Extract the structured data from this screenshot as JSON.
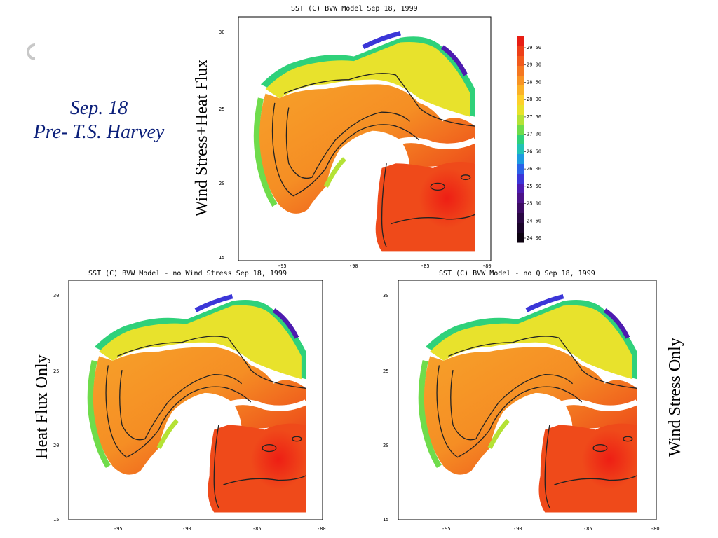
{
  "slide": {
    "title_line1": "Sep. 18",
    "title_line2": "Pre- T.S. Harvey"
  },
  "side_labels": {
    "top": "Wind Stress+Heat Flux",
    "bottom_left": "Heat Flux Only",
    "bottom_right": "Wind Stress Only"
  },
  "panels": [
    {
      "id": "top",
      "title": "SST (C) BVW Model Sep 18, 1999"
    },
    {
      "id": "bottom-left",
      "title": "SST (C) BVW Model - no Wind Stress Sep 18, 1999"
    },
    {
      "id": "bottom-right",
      "title": "SST (C) BVW Model - no Q Sep 18, 1999"
    }
  ],
  "axes": {
    "x_ticks": [
      "-95",
      "-90",
      "-85",
      "-80"
    ],
    "y_ticks": [
      "30",
      "25",
      "20",
      "15"
    ]
  },
  "colorbar": {
    "labels": [
      "29.50",
      "29.00",
      "28.50",
      "28.00",
      "27.50",
      "27.00",
      "26.50",
      "26.00",
      "25.50",
      "25.00",
      "24.50",
      "24.00"
    ],
    "colors": [
      "#e81e14",
      "#ee3f18",
      "#f25a1c",
      "#f57720",
      "#f89424",
      "#fbb227",
      "#fdd02a",
      "#e8e22c",
      "#b4e236",
      "#6fdc4b",
      "#2fd17a",
      "#21c3b5",
      "#1d9be0",
      "#2b63e8",
      "#3b36d8",
      "#4d1bb0",
      "#4c1288",
      "#3d0c63",
      "#2a0843",
      "#1a0429",
      "#0c0210"
    ]
  }
}
